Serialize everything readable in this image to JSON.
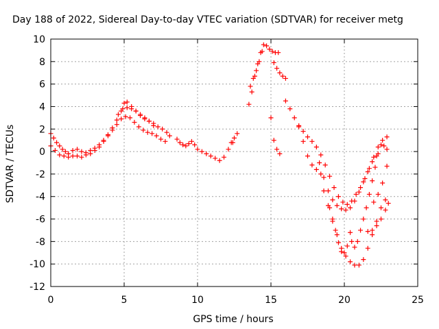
{
  "chart_data": {
    "type": "scatter",
    "title": "Day 188 of 2022, Sidereal Day-to-day VTEC variation (SDTVAR) for receiver metg",
    "xlabel": "GPS time / hours",
    "ylabel": "SDTVAR / TECUs",
    "xlim": [
      0,
      25
    ],
    "ylim": [
      -12,
      10
    ],
    "xticks": [
      "0",
      "5",
      "10",
      "15",
      "20",
      "25"
    ],
    "yticks": [
      "10",
      "8",
      "6",
      "4",
      "2",
      "0",
      "-2",
      "-4",
      "-6",
      "-8",
      "-10",
      "-12"
    ],
    "grid": true,
    "marker": "+",
    "color": "#ff0000",
    "series": [
      {
        "x": [
          0.0,
          0.2,
          0.4,
          0.6,
          0.8,
          1.0,
          1.2,
          1.5,
          1.8,
          2.1,
          2.4,
          2.7,
          3.0,
          3.3,
          3.6,
          3.9,
          4.2,
          4.5,
          4.8,
          5.0,
          5.2,
          5.5,
          5.8,
          6.1,
          6.4,
          6.7,
          7.0,
          7.3,
          7.6,
          7.9,
          8.1
        ],
        "y": [
          1.6,
          1.2,
          0.8,
          0.5,
          0.2,
          0.0,
          -0.2,
          0.1,
          0.2,
          0.0,
          -0.1,
          0.1,
          0.3,
          0.6,
          1.0,
          1.5,
          2.1,
          2.8,
          3.6,
          4.3,
          4.4,
          4.0,
          3.6,
          3.2,
          2.9,
          2.7,
          2.5,
          2.2,
          2.0,
          1.7,
          1.4
        ]
      },
      {
        "x": [
          0.0,
          0.3,
          0.6,
          0.9,
          1.2,
          1.5,
          1.8,
          2.1,
          2.4,
          2.7,
          3.0,
          3.3,
          3.6,
          3.9,
          4.2,
          4.5,
          4.8,
          5.1,
          5.4,
          5.7,
          6.0,
          6.3,
          6.6,
          6.9,
          7.2,
          7.5,
          7.8
        ],
        "y": [
          0.5,
          0.1,
          -0.3,
          -0.4,
          -0.5,
          -0.4,
          -0.4,
          -0.5,
          -0.3,
          -0.2,
          0.1,
          0.4,
          0.9,
          1.4,
          1.9,
          2.4,
          2.9,
          3.1,
          3.0,
          2.6,
          2.2,
          1.9,
          1.7,
          1.6,
          1.4,
          1.1,
          0.9
        ]
      },
      {
        "x": [
          4.6,
          4.9,
          5.2,
          5.5,
          5.8,
          6.1,
          6.4,
          6.7,
          7.0
        ],
        "y": [
          3.3,
          3.8,
          3.9,
          3.8,
          3.6,
          3.3,
          3.0,
          2.7,
          2.3
        ]
      },
      {
        "x": [
          8.6,
          8.8,
          9.0,
          9.2,
          9.4,
          9.6,
          9.8,
          10.0,
          10.3,
          10.6,
          10.9,
          11.2,
          11.5,
          11.8,
          12.1,
          12.4
        ],
        "y": [
          1.1,
          0.8,
          0.6,
          0.5,
          0.7,
          0.9,
          0.6,
          0.2,
          0.0,
          -0.2,
          -0.4,
          -0.6,
          -0.8,
          -0.5,
          0.2,
          0.8
        ]
      },
      {
        "x": [
          12.3,
          12.5,
          12.7
        ],
        "y": [
          0.8,
          1.2,
          1.6
        ]
      },
      {
        "x": [
          13.5,
          13.7,
          13.9,
          14.1,
          14.3,
          14.5,
          14.7,
          14.9,
          15.1,
          15.3,
          15.5
        ],
        "y": [
          4.2,
          5.3,
          6.7,
          7.8,
          8.8,
          9.5,
          9.4,
          9.1,
          8.9,
          8.8,
          8.8
        ]
      },
      {
        "x": [
          13.6,
          13.8,
          14.0,
          14.2,
          14.4
        ],
        "y": [
          5.8,
          6.5,
          7.2,
          8.0,
          8.9
        ]
      },
      {
        "x": [
          15.2,
          15.4,
          15.6,
          15.8,
          16.0
        ],
        "y": [
          7.9,
          7.4,
          7.0,
          6.7,
          6.5
        ]
      },
      {
        "x": [
          15.0,
          15.2,
          15.4,
          15.6
        ],
        "y": [
          3.0,
          1.0,
          0.2,
          -0.2
        ]
      },
      {
        "x": [
          16.0,
          16.3,
          16.6,
          16.9,
          17.2,
          17.5,
          17.8,
          18.1,
          18.4,
          18.7,
          19.0,
          19.3,
          19.6,
          19.9,
          20.2,
          20.5,
          20.8,
          21.1,
          21.4,
          21.7,
          22.0,
          22.3,
          22.6,
          22.9
        ],
        "y": [
          4.5,
          3.8,
          3.0,
          2.3,
          1.8,
          1.3,
          0.9,
          0.4,
          -0.3,
          -1.2,
          -2.2,
          -3.2,
          -4.0,
          -4.5,
          -4.7,
          -4.4,
          -3.8,
          -3.2,
          -2.4,
          -1.5,
          -0.5,
          0.4,
          1.0,
          1.3
        ]
      },
      {
        "x": [
          16.9,
          17.2,
          17.5,
          17.8,
          18.1,
          18.4
        ],
        "y": [
          2.2,
          0.9,
          -0.4,
          -1.2,
          -1.6,
          -2.0
        ]
      },
      {
        "x": [
          18.3,
          18.6,
          18.9,
          19.2,
          19.5,
          19.8,
          20.1,
          20.4,
          20.7,
          21.0,
          21.3,
          21.6,
          21.9,
          22.2
        ],
        "y": [
          -1.0,
          -2.3,
          -3.5,
          -4.3,
          -4.8,
          -5.1,
          -5.2,
          -5.0,
          -4.4,
          -3.6,
          -2.7,
          -1.8,
          -0.9,
          -0.4
        ]
      },
      {
        "x": [
          18.6,
          18.9,
          19.2,
          19.5,
          19.8,
          20.1,
          20.4,
          20.7,
          21.0,
          21.3,
          21.6,
          21.9,
          22.2,
          22.5,
          22.8
        ],
        "y": [
          -3.5,
          -4.8,
          -6.2,
          -7.4,
          -8.6,
          -9.3,
          -9.8,
          -10.1,
          -10.1,
          -9.6,
          -8.6,
          -7.4,
          -6.2,
          -5.0,
          -4.3
        ]
      },
      {
        "x": [
          19.0,
          19.2,
          19.4,
          19.6,
          19.8,
          20.0,
          20.2,
          20.4
        ],
        "y": [
          -5.0,
          -6.0,
          -7.0,
          -8.1,
          -8.9,
          -9.0,
          -8.4,
          -7.2
        ]
      },
      {
        "x": [
          20.5,
          20.7,
          20.9,
          21.1,
          21.3,
          21.5,
          21.7,
          21.9,
          22.1,
          22.3,
          22.5,
          22.7,
          22.9
        ],
        "y": [
          -8.0,
          -8.5,
          -8.0,
          -7.0,
          -6.0,
          -5.0,
          -3.8,
          -2.6,
          -1.4,
          -0.2,
          0.6,
          0.5,
          0.2
        ]
      },
      {
        "x": [
          21.6,
          21.9,
          22.2,
          22.5,
          22.8,
          23.0
        ],
        "y": [
          -7.1,
          -7.0,
          -6.6,
          -6.0,
          -5.2,
          -4.6
        ]
      },
      {
        "x": [
          22.0,
          22.3,
          22.6,
          22.9
        ],
        "y": [
          -4.5,
          -3.8,
          -2.8,
          -1.3
        ]
      }
    ]
  }
}
